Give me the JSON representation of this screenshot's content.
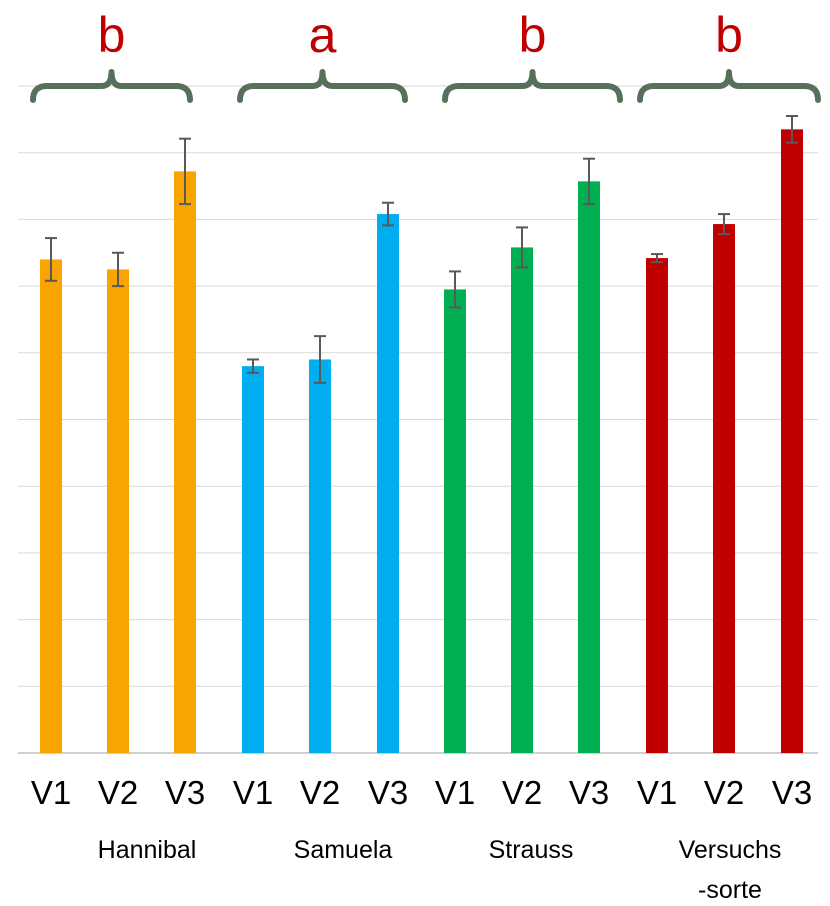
{
  "chart_data": {
    "type": "bar",
    "ylim": [
      0,
      10
    ],
    "grid": true,
    "groups": [
      {
        "name": "Hannibal",
        "name_lines": [
          "Hannibal"
        ],
        "color": "#F8A502",
        "letter": "b",
        "bars": [
          {
            "label": "V1",
            "value": 7.4,
            "err": 0.32
          },
          {
            "label": "V2",
            "value": 7.25,
            "err": 0.25
          },
          {
            "label": "V3",
            "value": 8.72,
            "err": 0.49
          }
        ]
      },
      {
        "name": "Samuela",
        "name_lines": [
          "Samuela"
        ],
        "color": "#00AEEF",
        "letter": "a",
        "bars": [
          {
            "label": "V1",
            "value": 5.8,
            "err": 0.1
          },
          {
            "label": "V2",
            "value": 5.9,
            "err": 0.35
          },
          {
            "label": "V3",
            "value": 8.08,
            "err": 0.17
          }
        ]
      },
      {
        "name": "Strauss",
        "name_lines": [
          "Strauss"
        ],
        "color": "#00B050",
        "letter": "b",
        "bars": [
          {
            "label": "V1",
            "value": 6.95,
            "err": 0.27
          },
          {
            "label": "V2",
            "value": 7.58,
            "err": 0.3
          },
          {
            "label": "V3",
            "value": 8.57,
            "err": 0.34
          }
        ]
      },
      {
        "name": "Versuchs-sorte",
        "name_lines": [
          "Versuchs",
          "-sorte"
        ],
        "color": "#C00000",
        "letter": "b",
        "bars": [
          {
            "label": "V1",
            "value": 7.42,
            "err": 0.06
          },
          {
            "label": "V2",
            "value": 7.93,
            "err": 0.15
          },
          {
            "label": "V3",
            "value": 9.35,
            "err": 0.2
          }
        ]
      }
    ],
    "annotation_color": "#C00000",
    "bracket_color": "#56705A",
    "errorbar_color": "#595959",
    "grid_color": "#D9D9D9"
  }
}
